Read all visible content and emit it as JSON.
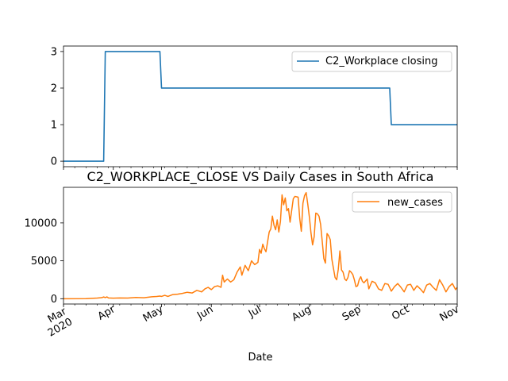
{
  "chart_data": [
    {
      "type": "line",
      "title": "",
      "xlabel": "",
      "ylabel": "",
      "x_range": [
        "2020-03-01",
        "2020-11-01"
      ],
      "ylim": [
        -0.15,
        3.15
      ],
      "yticks": [
        0,
        1,
        2,
        3
      ],
      "grid": false,
      "legend_position": "top-right",
      "series": [
        {
          "name": "C2_Workplace closing",
          "color": "#1f77b4",
          "points": [
            [
              "2020-03-01",
              0
            ],
            [
              "2020-03-26",
              0
            ],
            [
              "2020-03-27",
              3
            ],
            [
              "2020-04-30",
              3
            ],
            [
              "2020-05-01",
              2
            ],
            [
              "2020-09-20",
              2
            ],
            [
              "2020-09-21",
              1
            ],
            [
              "2020-11-01",
              1
            ]
          ]
        }
      ]
    },
    {
      "type": "line",
      "title": "C2_WORKPLACE_CLOSE VS Daily Cases in South Africa",
      "xlabel": "Date",
      "ylabel": "",
      "x_range": [
        "2020-03-01",
        "2020-11-01"
      ],
      "ylim": [
        -700,
        14700
      ],
      "yticks": [
        0,
        5000,
        10000
      ],
      "xtick_labels": [
        "Mar\n2020",
        "Apr",
        "May",
        "Jun",
        "Jul",
        "Aug",
        "Sep",
        "Oct",
        "Nov"
      ],
      "xtick_dates": [
        "2020-03-01",
        "2020-04-01",
        "2020-05-01",
        "2020-06-01",
        "2020-07-01",
        "2020-08-01",
        "2020-09-01",
        "2020-10-01",
        "2020-11-01"
      ],
      "grid": false,
      "legend_position": "top-right",
      "series": [
        {
          "name": "new_cases",
          "color": "#ff7f0e",
          "points": [
            [
              "2020-03-01",
              0
            ],
            [
              "2020-03-15",
              10
            ],
            [
              "2020-03-22",
              80
            ],
            [
              "2020-03-25",
              150
            ],
            [
              "2020-03-26",
              230
            ],
            [
              "2020-03-27",
              150
            ],
            [
              "2020-03-28",
              240
            ],
            [
              "2020-03-29",
              100
            ],
            [
              "2020-04-01",
              70
            ],
            [
              "2020-04-05",
              100
            ],
            [
              "2020-04-10",
              90
            ],
            [
              "2020-04-15",
              160
            ],
            [
              "2020-04-20",
              130
            ],
            [
              "2020-04-25",
              250
            ],
            [
              "2020-04-28",
              300
            ],
            [
              "2020-04-30",
              350
            ],
            [
              "2020-05-01",
              300
            ],
            [
              "2020-05-03",
              450
            ],
            [
              "2020-05-05",
              300
            ],
            [
              "2020-05-08",
              550
            ],
            [
              "2020-05-11",
              600
            ],
            [
              "2020-05-14",
              700
            ],
            [
              "2020-05-17",
              850
            ],
            [
              "2020-05-20",
              750
            ],
            [
              "2020-05-23",
              1100
            ],
            [
              "2020-05-26",
              900
            ],
            [
              "2020-05-28",
              1300
            ],
            [
              "2020-05-30",
              1500
            ],
            [
              "2020-06-01",
              1200
            ],
            [
              "2020-06-03",
              1600
            ],
            [
              "2020-06-05",
              1700
            ],
            [
              "2020-06-07",
              1500
            ],
            [
              "2020-06-08",
              3100
            ],
            [
              "2020-06-09",
              2200
            ],
            [
              "2020-06-11",
              2600
            ],
            [
              "2020-06-13",
              2200
            ],
            [
              "2020-06-15",
              2500
            ],
            [
              "2020-06-17",
              3500
            ],
            [
              "2020-06-19",
              4200
            ],
            [
              "2020-06-20",
              3100
            ],
            [
              "2020-06-22",
              4400
            ],
            [
              "2020-06-24",
              3700
            ],
            [
              "2020-06-26",
              5000
            ],
            [
              "2020-06-28",
              4500
            ],
            [
              "2020-06-30",
              4800
            ],
            [
              "2020-07-01",
              6500
            ],
            [
              "2020-07-02",
              6000
            ],
            [
              "2020-07-03",
              7200
            ],
            [
              "2020-07-04",
              6600
            ],
            [
              "2020-07-05",
              6200
            ],
            [
              "2020-07-06",
              7500
            ],
            [
              "2020-07-07",
              8800
            ],
            [
              "2020-07-08",
              9200
            ],
            [
              "2020-07-09",
              10900
            ],
            [
              "2020-07-10",
              9700
            ],
            [
              "2020-07-11",
              9100
            ],
            [
              "2020-07-12",
              10400
            ],
            [
              "2020-07-13",
              8800
            ],
            [
              "2020-07-14",
              10200
            ],
            [
              "2020-07-15",
              13700
            ],
            [
              "2020-07-16",
              12400
            ],
            [
              "2020-07-17",
              13300
            ],
            [
              "2020-07-18",
              11600
            ],
            [
              "2020-07-19",
              11900
            ],
            [
              "2020-07-20",
              10100
            ],
            [
              "2020-07-22",
              13200
            ],
            [
              "2020-07-23",
              13500
            ],
            [
              "2020-07-25",
              13400
            ],
            [
              "2020-07-26",
              10600
            ],
            [
              "2020-07-27",
              8900
            ],
            [
              "2020-07-28",
              12600
            ],
            [
              "2020-07-29",
              13600
            ],
            [
              "2020-07-30",
              14000
            ],
            [
              "2020-07-31",
              12500
            ],
            [
              "2020-08-01",
              10800
            ],
            [
              "2020-08-02",
              8700
            ],
            [
              "2020-08-03",
              7100
            ],
            [
              "2020-08-04",
              8200
            ],
            [
              "2020-08-05",
              11300
            ],
            [
              "2020-08-06",
              11200
            ],
            [
              "2020-08-07",
              10900
            ],
            [
              "2020-08-08",
              9800
            ],
            [
              "2020-08-09",
              7600
            ],
            [
              "2020-08-10",
              5300
            ],
            [
              "2020-08-11",
              4700
            ],
            [
              "2020-08-12",
              8600
            ],
            [
              "2020-08-13",
              8300
            ],
            [
              "2020-08-14",
              7800
            ],
            [
              "2020-08-15",
              5200
            ],
            [
              "2020-08-16",
              4000
            ],
            [
              "2020-08-17",
              2800
            ],
            [
              "2020-08-18",
              2500
            ],
            [
              "2020-08-19",
              3900
            ],
            [
              "2020-08-20",
              6300
            ],
            [
              "2020-08-21",
              3800
            ],
            [
              "2020-08-22",
              3500
            ],
            [
              "2020-08-23",
              2600
            ],
            [
              "2020-08-24",
              2400
            ],
            [
              "2020-08-25",
              2800
            ],
            [
              "2020-08-26",
              3700
            ],
            [
              "2020-08-27",
              3500
            ],
            [
              "2020-08-28",
              3200
            ],
            [
              "2020-08-29",
              2500
            ],
            [
              "2020-08-30",
              1600
            ],
            [
              "2020-08-31",
              1700
            ],
            [
              "2020-09-01",
              2500
            ],
            [
              "2020-09-02",
              2900
            ],
            [
              "2020-09-03",
              2300
            ],
            [
              "2020-09-04",
              2100
            ],
            [
              "2020-09-06",
              2600
            ],
            [
              "2020-09-07",
              1300
            ],
            [
              "2020-09-09",
              2300
            ],
            [
              "2020-09-11",
              2100
            ],
            [
              "2020-09-13",
              1300
            ],
            [
              "2020-09-15",
              1100
            ],
            [
              "2020-09-17",
              2000
            ],
            [
              "2020-09-19",
              1900
            ],
            [
              "2020-09-21",
              1000
            ],
            [
              "2020-09-23",
              1600
            ],
            [
              "2020-09-25",
              2000
            ],
            [
              "2020-09-27",
              1500
            ],
            [
              "2020-09-29",
              900
            ],
            [
              "2020-10-01",
              1800
            ],
            [
              "2020-10-03",
              1900
            ],
            [
              "2020-10-05",
              1100
            ],
            [
              "2020-10-07",
              1700
            ],
            [
              "2020-10-09",
              1300
            ],
            [
              "2020-10-11",
              800
            ],
            [
              "2020-10-13",
              1800
            ],
            [
              "2020-10-15",
              2000
            ],
            [
              "2020-10-17",
              1500
            ],
            [
              "2020-10-19",
              1100
            ],
            [
              "2020-10-21",
              2500
            ],
            [
              "2020-10-23",
              1800
            ],
            [
              "2020-10-25",
              900
            ],
            [
              "2020-10-27",
              1600
            ],
            [
              "2020-10-29",
              2000
            ],
            [
              "2020-10-31",
              1200
            ],
            [
              "2020-11-01",
              1500
            ]
          ]
        }
      ]
    }
  ]
}
